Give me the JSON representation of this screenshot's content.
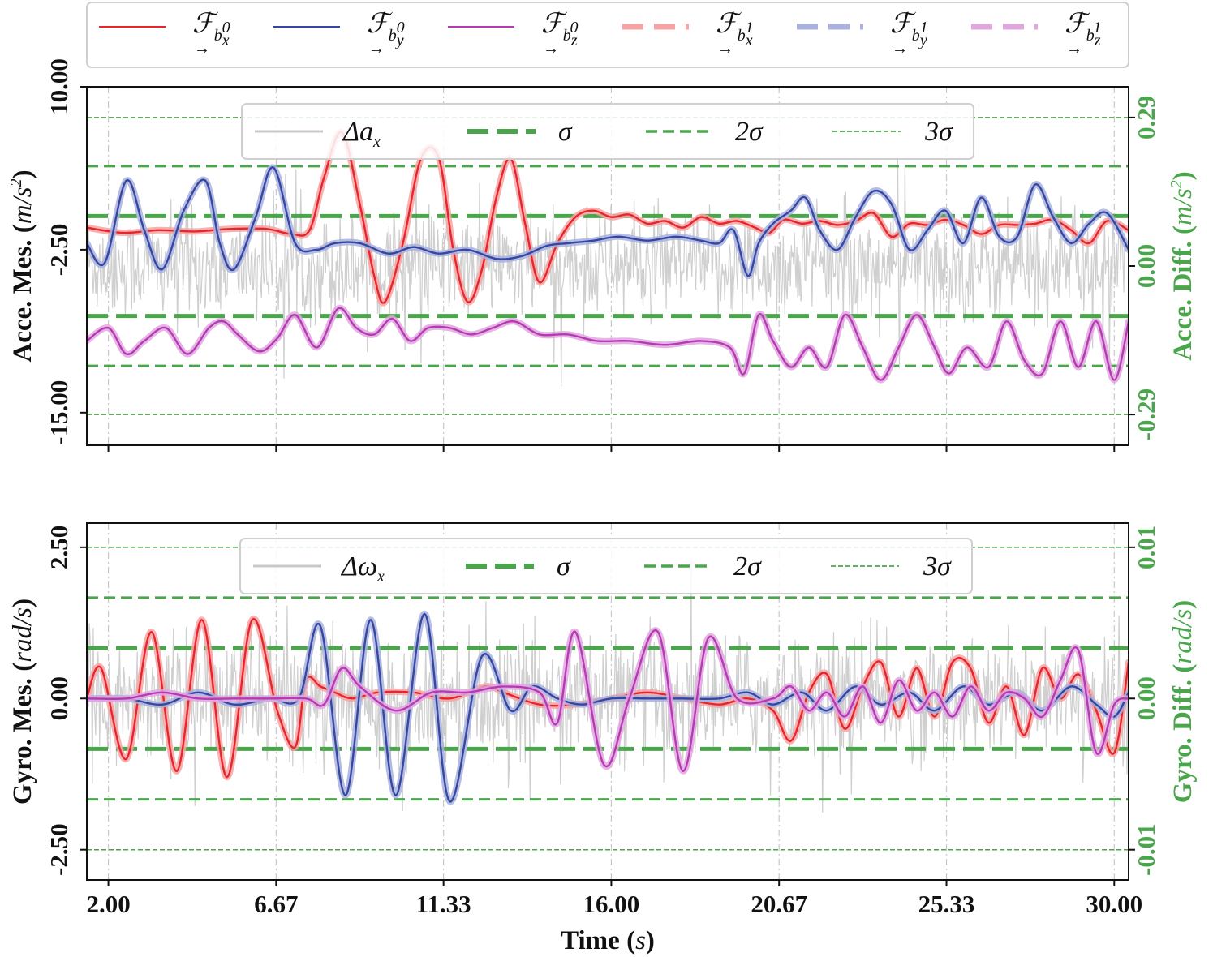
{
  "figure_legend": {
    "entries": [
      {
        "label": "ℱ",
        "sub": "b",
        "supsub": "x",
        "sup": "0",
        "style": "solid",
        "color": "#e8252a"
      },
      {
        "label": "ℱ",
        "sub": "b",
        "supsub": "y",
        "sup": "0",
        "style": "solid",
        "color": "#3447a5"
      },
      {
        "label": "ℱ",
        "sub": "b",
        "supsub": "z",
        "sup": "0",
        "style": "solid",
        "color": "#b63ab3"
      },
      {
        "label": "ℱ",
        "sub": "b",
        "supsub": "x",
        "sup": "1",
        "style": "dashed",
        "color": "#f5a3a5"
      },
      {
        "label": "ℱ",
        "sub": "b",
        "supsub": "y",
        "sup": "1",
        "style": "dashed",
        "color": "#a9b1dc"
      },
      {
        "label": "ℱ",
        "sub": "b",
        "supsub": "z",
        "sup": "1",
        "style": "dashed",
        "color": "#e0a7df"
      }
    ]
  },
  "colors": {
    "fx": "#e8252a",
    "fy": "#3447a5",
    "fz": "#b63ab3",
    "diff": "#cccccc",
    "sigma": "#4aa64a",
    "grid": "#c8c8c8"
  },
  "chart_data": [
    {
      "type": "line",
      "id": "accelerometer",
      "ylabel": "Acce. Mes. (m/s²)",
      "ylabel_parts": {
        "text": "Acce. Mes. (",
        "unit": "m/s",
        "power": "2",
        "close": ")"
      },
      "ylabel_right": "Acce. Diff. (m/s²)",
      "ylabel_right_parts": {
        "text": "Acce. Diff. (",
        "unit": "m/s",
        "power": "2",
        "close": ")"
      },
      "xlim": [
        1.4,
        30.4
      ],
      "ylim": [
        -17.5,
        10.0
      ],
      "yticks": [
        10.0,
        -2.5,
        -15.0
      ],
      "ytick_labels": [
        "10.00",
        "-2.50",
        "-15.00"
      ],
      "ylim_right": [
        -0.35,
        0.35
      ],
      "yticks_right": [
        0.29,
        0.0,
        -0.29
      ],
      "ytick_labels_right": [
        "0.29",
        "0.00",
        "-0.29"
      ],
      "sigma_lines_right": {
        "sigma": 0.0975,
        "two_sigma": 0.195,
        "three_sigma": 0.29
      },
      "legend": {
        "placement": "top-center",
        "entries": [
          "Δa_x",
          "σ",
          "2σ",
          "3σ"
        ]
      },
      "legend_labels": {
        "diff": "Δa",
        "diff_sub": "x",
        "sigma": "σ",
        "two_sigma": "2σ",
        "three_sigma": "3σ"
      },
      "grid": true,
      "series": [
        {
          "name": "ℱ_{b_x^0}",
          "color_key": "fx",
          "x": [
            1.4,
            2.4,
            3.4,
            4.4,
            5.4,
            6.4,
            7.1,
            7.6,
            8.0,
            8.5,
            9.0,
            9.4,
            9.7,
            10.2,
            10.7,
            11.2,
            11.6,
            12.0,
            12.4,
            12.8,
            13.2,
            13.6,
            14.0,
            14.5,
            15.0,
            15.5,
            16.0,
            16.5,
            17.0,
            17.5,
            18.0,
            18.5,
            19.0,
            19.5,
            20.0,
            20.4,
            20.8,
            21.3,
            21.8,
            22.3,
            22.8,
            23.3,
            23.8,
            24.3,
            24.8,
            25.3,
            25.8,
            26.3,
            26.8,
            27.3,
            27.8,
            28.3,
            28.8,
            29.3,
            29.8,
            30.4
          ],
          "y": [
            -0.8,
            -1.2,
            -1.0,
            -1.1,
            -0.9,
            -0.9,
            -1.3,
            -1.0,
            3.0,
            6.5,
            1.0,
            -4.5,
            -6.5,
            -2.0,
            4.5,
            4.5,
            -2.5,
            -6.5,
            -4.0,
            1.5,
            4.5,
            -0.5,
            -5.0,
            -2.0,
            0.0,
            0.5,
            0.0,
            0.2,
            -0.5,
            -0.3,
            -0.8,
            0.0,
            -0.5,
            -0.3,
            -0.8,
            -1.2,
            -0.2,
            -0.5,
            -0.3,
            -0.6,
            -0.3,
            0.3,
            -1.5,
            -0.5,
            -0.6,
            -0.2,
            -0.6,
            -1.3,
            -0.6,
            -0.6,
            -0.5,
            -0.2,
            -1.0,
            -2.0,
            -0.3,
            -1.0
          ]
        },
        {
          "name": "ℱ_{b_y^0}",
          "color_key": "fy",
          "x": [
            1.4,
            1.9,
            2.5,
            3.0,
            3.5,
            4.1,
            4.7,
            5.1,
            5.5,
            6.1,
            6.6,
            7.2,
            7.8,
            8.3,
            9.0,
            9.8,
            10.5,
            11.2,
            12.0,
            12.8,
            13.5,
            14.2,
            14.8,
            15.5,
            16.2,
            17.0,
            17.8,
            18.5,
            19.0,
            19.4,
            19.8,
            20.1,
            20.5,
            21.0,
            21.4,
            21.8,
            22.3,
            22.8,
            23.3,
            23.8,
            24.3,
            24.8,
            25.3,
            25.8,
            26.3,
            26.8,
            27.3,
            27.8,
            28.3,
            28.8,
            29.3,
            29.8,
            30.4
          ],
          "y": [
            -2.0,
            -3.5,
            2.8,
            -1.0,
            -4.0,
            0.5,
            2.8,
            -2.0,
            -4.0,
            0.0,
            3.8,
            -2.0,
            -2.5,
            -2.0,
            -2.0,
            -2.8,
            -2.3,
            -2.8,
            -2.5,
            -3.2,
            -3.0,
            -2.2,
            -2.0,
            -1.8,
            -1.5,
            -1.8,
            -1.5,
            -1.8,
            -2.0,
            -1.0,
            -4.5,
            -2.0,
            -0.5,
            0.5,
            1.5,
            -1.0,
            -2.5,
            0.0,
            2.0,
            1.0,
            -2.5,
            -1.0,
            0.5,
            -2.0,
            1.5,
            -1.5,
            -1.5,
            2.5,
            0.0,
            -2.0,
            -0.5,
            0.3,
            -2.5
          ]
        },
        {
          "name": "ℱ_{b_z^0}",
          "color_key": "fz",
          "x": [
            1.4,
            2.0,
            2.5,
            3.0,
            3.6,
            4.2,
            4.8,
            5.2,
            5.6,
            6.2,
            6.7,
            7.2,
            7.8,
            8.4,
            8.9,
            9.4,
            9.9,
            10.4,
            10.9,
            11.5,
            12.1,
            12.7,
            13.3,
            14.0,
            14.8,
            15.6,
            16.5,
            17.5,
            18.5,
            19.3,
            19.7,
            20.1,
            20.5,
            21.0,
            21.5,
            22.0,
            22.5,
            23.0,
            23.5,
            24.0,
            24.5,
            25.0,
            25.4,
            25.9,
            26.5,
            27.0,
            27.5,
            28.0,
            28.5,
            29.0,
            29.5,
            30.0,
            30.4
          ],
          "y": [
            -9.5,
            -8.5,
            -10.5,
            -9.5,
            -8.5,
            -10.5,
            -8.5,
            -8.0,
            -9.0,
            -10.3,
            -9.3,
            -7.5,
            -10.0,
            -7.0,
            -8.5,
            -9.0,
            -7.8,
            -9.5,
            -8.5,
            -8.5,
            -9.0,
            -8.5,
            -8.0,
            -9.0,
            -9.0,
            -9.5,
            -9.5,
            -9.8,
            -9.5,
            -10.0,
            -12.0,
            -7.5,
            -9.5,
            -11.5,
            -10.0,
            -11.5,
            -7.5,
            -10.0,
            -12.5,
            -10.0,
            -7.5,
            -10.0,
            -12.0,
            -10.0,
            -11.5,
            -8.0,
            -11.0,
            -12.0,
            -8.0,
            -11.5,
            -8.0,
            -12.5,
            -8.0
          ]
        }
      ]
    },
    {
      "type": "line",
      "id": "gyroscope",
      "ylabel": "Gyro. Mes. (rad/s)",
      "ylabel_parts": {
        "text": "Gyro. Mes. (",
        "unit": "rad/s",
        "power": "",
        "close": ")"
      },
      "ylabel_right": "Gyro. Diff. (rad/s)",
      "ylabel_right_parts": {
        "text": "Gyro. Diff. (",
        "unit": "rad/s",
        "power": "",
        "close": ")"
      },
      "xlabel": "Time (s)",
      "xlabel_parts": {
        "text": "Time (",
        "unit": "s",
        "close": ")"
      },
      "xlim": [
        1.4,
        30.4
      ],
      "xticks": [
        2.0,
        6.67,
        11.33,
        16.0,
        20.67,
        25.33,
        30.0
      ],
      "xtick_labels": [
        "2.00",
        "6.67",
        "11.33",
        "16.00",
        "20.67",
        "25.33",
        "30.00"
      ],
      "ylim": [
        -3.0,
        2.9
      ],
      "yticks": [
        2.5,
        0.0,
        -2.5
      ],
      "ytick_labels": [
        "2.50",
        "0.00",
        "-2.50"
      ],
      "ylim_right": [
        -0.012,
        0.0116
      ],
      "yticks_right": [
        0.01,
        0.0,
        -0.01
      ],
      "ytick_labels_right": [
        "0.01",
        "0.00",
        "-0.01"
      ],
      "sigma_lines_right": {
        "sigma": 0.00333,
        "two_sigma": 0.00667,
        "three_sigma": 0.01
      },
      "legend": {
        "placement": "top-center",
        "entries": [
          "Δω_x",
          "σ",
          "2σ",
          "3σ"
        ]
      },
      "legend_labels": {
        "diff": "Δω",
        "diff_sub": "x",
        "sigma": "σ",
        "two_sigma": "2σ",
        "three_sigma": "3σ"
      },
      "grid": true,
      "series": [
        {
          "name": "ℱ_{b_x^0}",
          "color_key": "fx",
          "x": [
            1.4,
            1.8,
            2.5,
            3.2,
            3.9,
            4.6,
            5.3,
            6.0,
            6.7,
            7.2,
            7.5,
            7.9,
            8.3,
            8.8,
            9.5,
            10.5,
            11.5,
            12.5,
            13.0,
            14.0,
            15.0,
            16.0,
            17.0,
            18.0,
            19.0,
            19.8,
            20.5,
            21.0,
            21.5,
            22.0,
            22.5,
            23.0,
            23.5,
            24.0,
            24.5,
            25.0,
            25.5,
            26.0,
            26.5,
            27.0,
            27.5,
            28.0,
            28.5,
            29.0,
            29.5,
            30.0,
            30.4
          ],
          "y": [
            0.0,
            0.5,
            -1.0,
            1.1,
            -1.2,
            1.3,
            -1.3,
            1.3,
            -0.2,
            -0.8,
            0.3,
            0.2,
            0.1,
            0.0,
            0.1,
            0.1,
            0.0,
            0.2,
            0.1,
            -0.1,
            -0.1,
            0.0,
            0.1,
            0.0,
            -0.1,
            0.0,
            -0.2,
            -0.7,
            0.1,
            0.4,
            -0.5,
            0.2,
            0.6,
            -0.3,
            0.5,
            -0.3,
            0.6,
            0.5,
            -0.4,
            0.2,
            -0.6,
            0.5,
            0.0,
            0.4,
            -0.2,
            -0.9,
            0.6
          ]
        },
        {
          "name": "ℱ_{b_y^0}",
          "color_key": "fy",
          "x": [
            1.4,
            2.5,
            3.5,
            4.5,
            5.5,
            6.5,
            7.3,
            7.9,
            8.6,
            9.3,
            10.0,
            10.8,
            11.5,
            12.4,
            13.2,
            13.8,
            14.5,
            15.2,
            16.0,
            17.0,
            18.0,
            19.0,
            19.8,
            20.5,
            21.3,
            22.0,
            22.8,
            23.5,
            24.3,
            25.0,
            25.8,
            26.5,
            27.3,
            28.0,
            28.8,
            29.5,
            30.0,
            30.4
          ],
          "y": [
            0.0,
            0.0,
            -0.1,
            0.1,
            -0.1,
            0.0,
            0.0,
            1.2,
            -1.6,
            1.3,
            -1.6,
            1.4,
            -1.7,
            0.7,
            -0.2,
            0.2,
            0.0,
            -0.1,
            0.0,
            0.0,
            0.0,
            0.0,
            0.1,
            -0.1,
            0.1,
            -0.2,
            0.2,
            -0.1,
            0.1,
            -0.2,
            0.2,
            -0.1,
            0.1,
            -0.2,
            0.2,
            -0.1,
            -0.3,
            0.1
          ]
        },
        {
          "name": "ℱ_{b_z^0}",
          "color_key": "fz",
          "x": [
            1.4,
            2.5,
            3.5,
            4.5,
            5.5,
            6.5,
            7.5,
            8.0,
            8.5,
            9.0,
            10.0,
            11.0,
            12.0,
            13.0,
            14.0,
            14.5,
            15.0,
            15.8,
            16.5,
            17.3,
            18.0,
            18.7,
            19.5,
            20.5,
            21.0,
            21.5,
            22.0,
            22.5,
            23.0,
            23.5,
            24.0,
            24.5,
            25.0,
            25.5,
            26.0,
            26.5,
            27.0,
            27.5,
            28.0,
            28.5,
            29.0,
            29.5,
            30.0,
            30.4
          ],
          "y": [
            0.0,
            0.0,
            0.1,
            0.0,
            0.0,
            0.0,
            0.0,
            -0.1,
            0.5,
            0.2,
            -0.2,
            0.1,
            0.1,
            0.2,
            0.1,
            -0.4,
            1.1,
            -1.1,
            0.0,
            1.1,
            -1.2,
            1.0,
            0.0,
            0.0,
            0.2,
            -0.2,
            0.1,
            -0.3,
            0.2,
            -0.4,
            0.3,
            -0.2,
            0.1,
            -0.3,
            0.2,
            -0.2,
            0.1,
            0.0,
            -0.3,
            0.3,
            0.8,
            -0.9,
            -0.1,
            0.0
          ]
        }
      ]
    }
  ]
}
